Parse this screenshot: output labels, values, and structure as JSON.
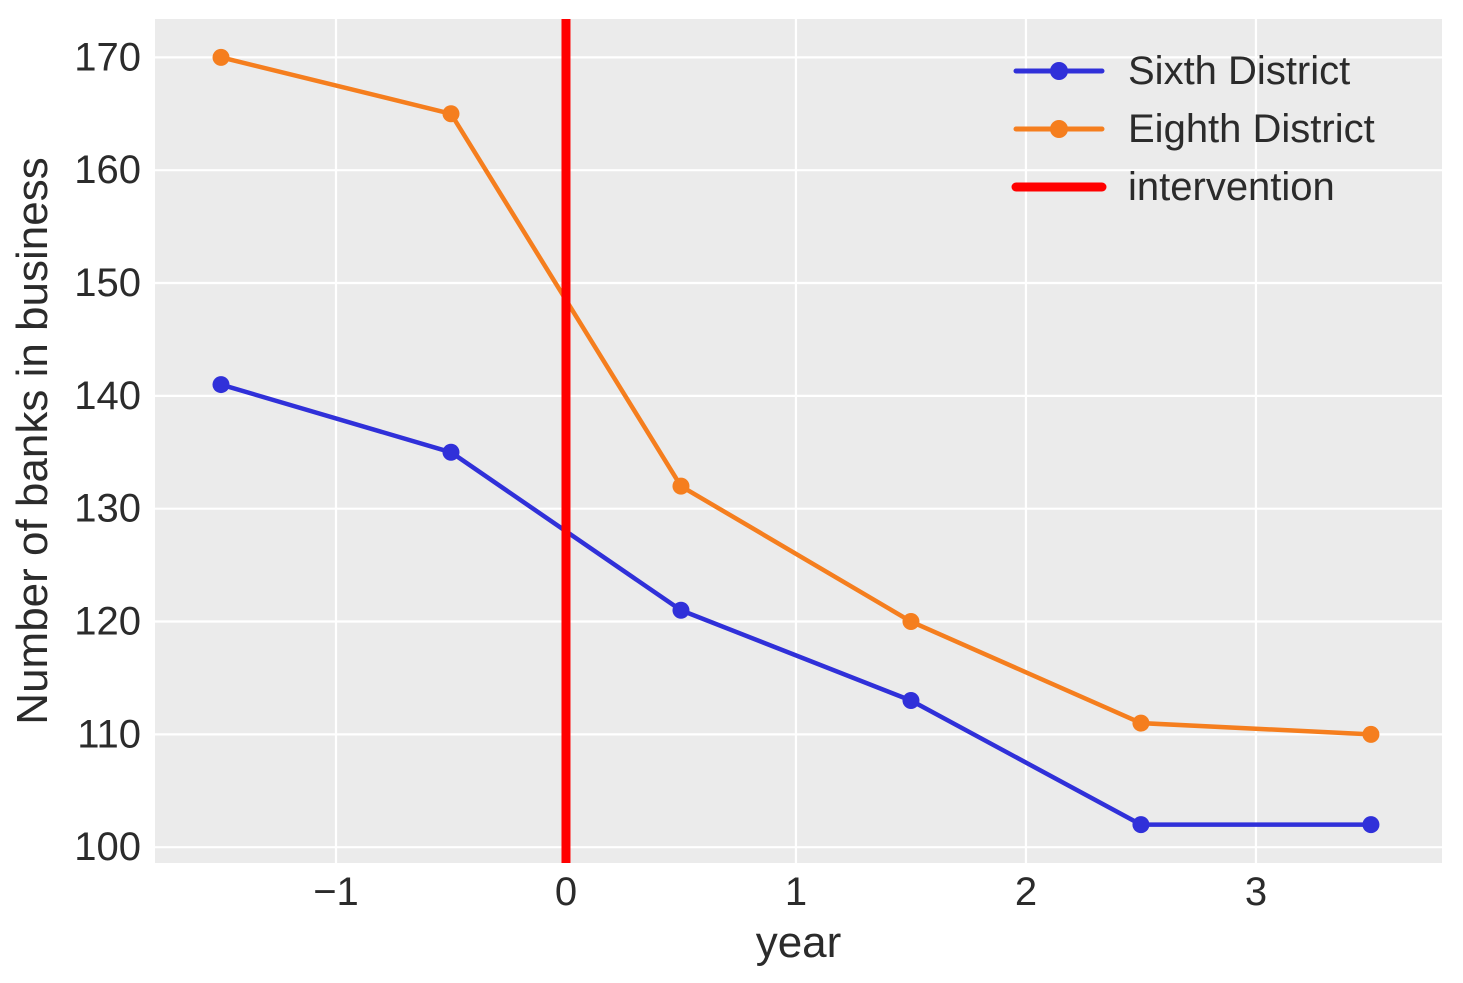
{
  "chart_data": {
    "type": "line",
    "xlabel": "year",
    "ylabel": "Number of banks in business",
    "x": [
      -1.5,
      -0.5,
      0.5,
      1.5,
      2.5,
      3.5
    ],
    "series": [
      {
        "name": "Sixth District",
        "color": "#3030d9",
        "values": [
          141,
          135,
          121,
          113,
          102,
          102
        ]
      },
      {
        "name": "Eighth District",
        "color": "#f57e1e",
        "values": [
          170,
          165,
          132,
          120,
          111,
          110
        ]
      }
    ],
    "intervention": {
      "label": "intervention",
      "x": 0,
      "color": "#ff0000"
    },
    "xticks": [
      -1,
      0,
      1,
      2,
      3
    ],
    "xtick_labels": [
      "−1",
      "0",
      "1",
      "2",
      "3"
    ],
    "yticks": [
      100,
      110,
      120,
      130,
      140,
      150,
      160,
      170
    ],
    "ytick_labels": [
      "100",
      "110",
      "120",
      "130",
      "140",
      "150",
      "160",
      "170"
    ],
    "xlim": [
      -1.787,
      3.809
    ],
    "ylim": [
      98.6,
      173.4
    ],
    "grid": true,
    "legend_position": "upper right",
    "colors": {
      "plot_background": "#ebebeb",
      "grid": "#ffffff",
      "text": "#2b2b2b"
    }
  }
}
